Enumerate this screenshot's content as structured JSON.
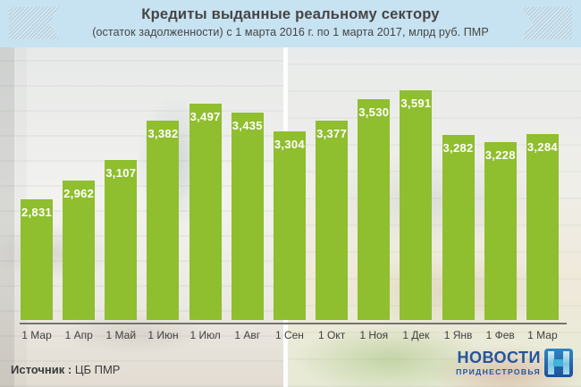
{
  "header": {
    "title": "Кредиты выданные реальному сектору",
    "subtitle": "(остаток задолженности) с 1 марта 2016 г. по 1 марта 2017, млрд руб. ПМР"
  },
  "chart_data": {
    "type": "bar",
    "title": "Кредиты выданные реальному сектору",
    "subtitle": "(остаток задолженности) с 1 марта 2016 г. по 1 марта 2017, млрд руб. ПМР",
    "unit": "млрд руб. ПМР",
    "categories": [
      "1 Мар",
      "1 Апр",
      "1 Май",
      "1 Июн",
      "1 Июл",
      "1 Авг",
      "1 Сен",
      "1 Окт",
      "1 Ноя",
      "1 Дек",
      "1 Янв",
      "1 Фев",
      "1 Мар"
    ],
    "values": [
      2.831,
      2.962,
      3.107,
      3.382,
      3.497,
      3.435,
      3.304,
      3.377,
      3.53,
      3.591,
      3.282,
      3.228,
      3.284
    ],
    "value_labels": [
      "2,831",
      "2,962",
      "3,107",
      "3,382",
      "3,497",
      "3,435",
      "3,304",
      "3,377",
      "3,530",
      "3,591",
      "3,282",
      "3,228",
      "3,284"
    ],
    "ylim": [
      2.7,
      3.7
    ],
    "grid": false,
    "legend": false,
    "bar_color": "#8fbe2f",
    "value_label_color": "#ffffff",
    "axis_line_color": "#74746e",
    "tick_label_color": "#3f3f3f"
  },
  "footer": {
    "source_prefix": "Источник :",
    "source_value": "ЦБ ПМР"
  },
  "logo": {
    "line1": "НОВОСТИ",
    "line2": "ПРИДНЕСТРОВЬЯ",
    "brand_color": "#24549d"
  },
  "theme": {
    "header_bg": "#c7e2f1",
    "title_color": "#454545"
  }
}
